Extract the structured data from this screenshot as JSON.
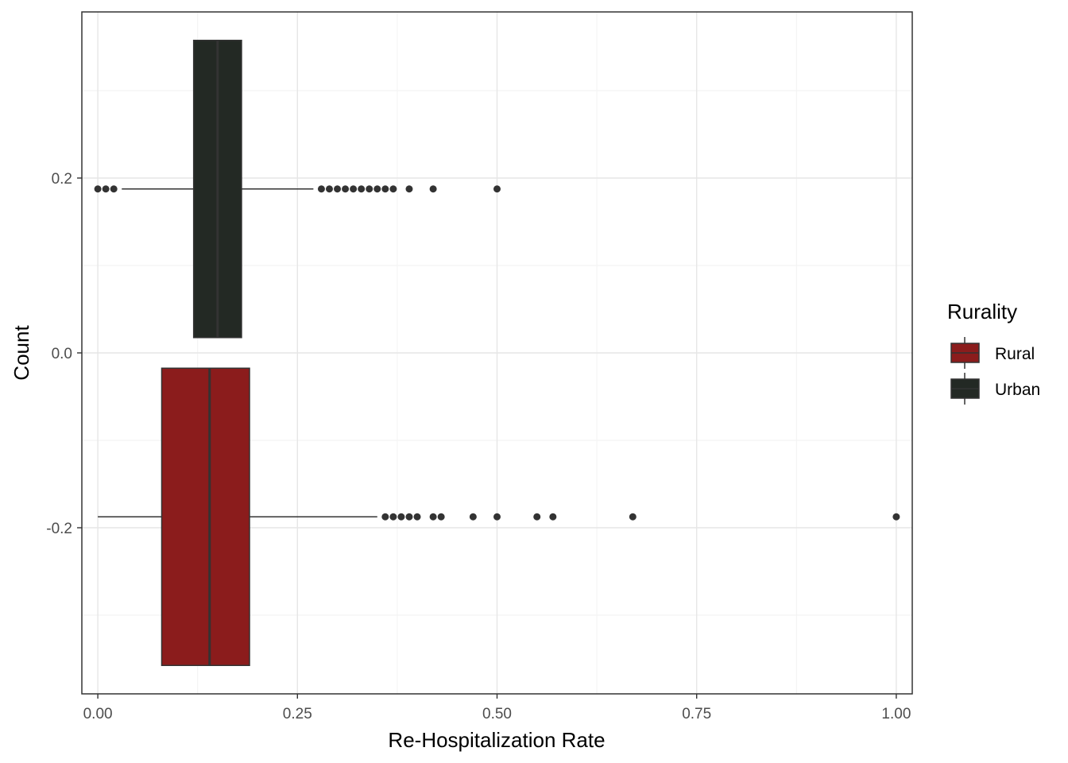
{
  "chart_data": {
    "type": "boxplot",
    "orientation": "horizontal",
    "title": "",
    "xlabel": "Re-Hospitalization Rate",
    "ylabel": "Count",
    "xlim": [
      -0.02,
      1.02
    ],
    "ylim": [
      -0.39,
      0.39
    ],
    "x_ticks": [
      0.0,
      0.25,
      0.5,
      0.75,
      1.0
    ],
    "x_tick_labels": [
      "0.00",
      "0.25",
      "0.50",
      "0.75",
      "1.00"
    ],
    "y_ticks": [
      -0.2,
      0.0,
      0.2
    ],
    "y_tick_labels": [
      "-0.2",
      "0.0",
      "0.2"
    ],
    "grid": true,
    "legend": {
      "title": "Rurality",
      "position": "right",
      "entries": [
        {
          "label": "Rural",
          "color": "#8b1c1c"
        },
        {
          "label": "Urban",
          "color": "#232924"
        }
      ]
    },
    "series": [
      {
        "name": "Urban",
        "color": "#232924",
        "y_center": 0.1875,
        "y_range": [
          0.0175,
          0.3575
        ],
        "whisker_low": 0.03,
        "q1": 0.12,
        "median": 0.15,
        "q3": 0.18,
        "whisker_high": 0.27,
        "outliers": [
          0.0,
          0.01,
          0.02,
          0.28,
          0.29,
          0.3,
          0.31,
          0.32,
          0.33,
          0.34,
          0.35,
          0.36,
          0.37,
          0.39,
          0.42,
          0.5
        ]
      },
      {
        "name": "Rural",
        "color": "#8b1c1c",
        "y_center": -0.1875,
        "y_range": [
          -0.3575,
          -0.0175
        ],
        "whisker_low": 0.0,
        "q1": 0.08,
        "median": 0.14,
        "q3": 0.19,
        "whisker_high": 0.35,
        "outliers": [
          0.36,
          0.37,
          0.38,
          0.39,
          0.4,
          0.42,
          0.43,
          0.47,
          0.5,
          0.55,
          0.57,
          0.67,
          1.0
        ]
      }
    ]
  }
}
